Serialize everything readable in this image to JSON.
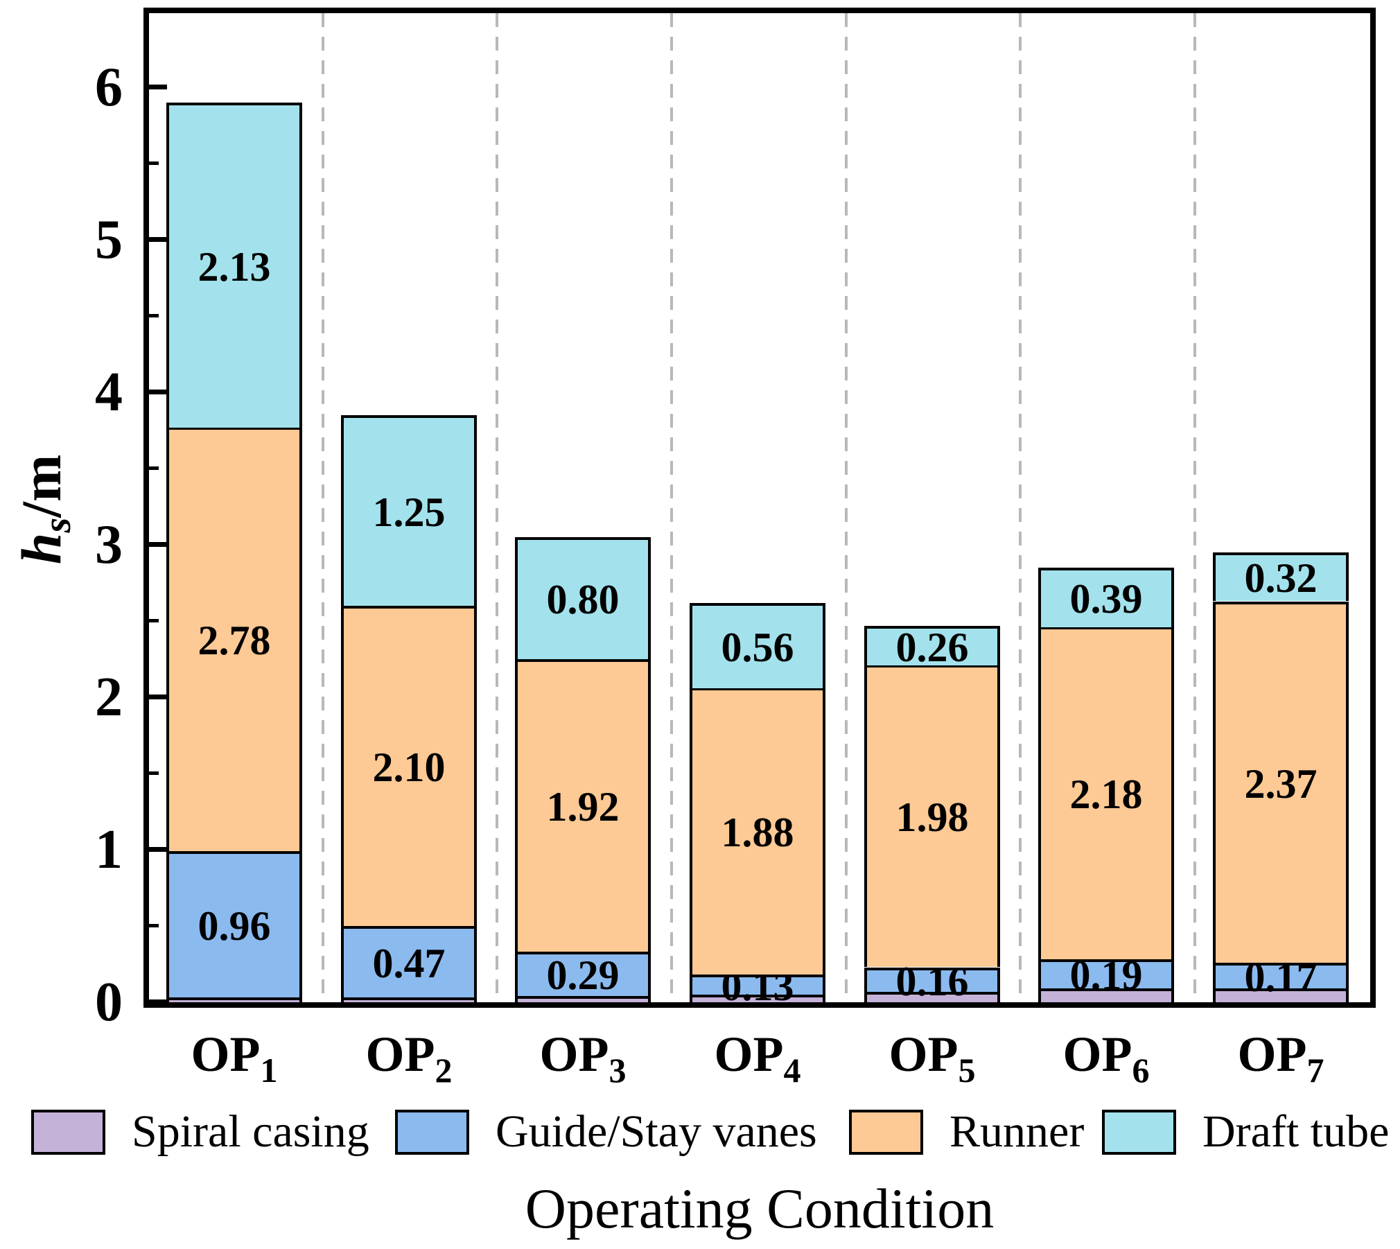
{
  "chart_data": {
    "type": "bar",
    "stacked": true,
    "title": "",
    "xlabel": "Operating Condition",
    "ylabel": "h_s/m",
    "ylabel_parts": {
      "symbol": "h",
      "subscript": "s",
      "unit": "/m"
    },
    "ylim": [
      0,
      6.5
    ],
    "ytick_labels": [
      "0",
      "1",
      "2",
      "3",
      "4",
      "5",
      "6"
    ],
    "ytick_minor": [
      0.5,
      1.5,
      2.5,
      3.5,
      4.5,
      5.5
    ],
    "grid": "vertical dashed separators between categories",
    "legend_position": "bottom",
    "categories": [
      {
        "base": "OP",
        "sub": "1"
      },
      {
        "base": "OP",
        "sub": "2"
      },
      {
        "base": "OP",
        "sub": "3"
      },
      {
        "base": "OP",
        "sub": "4"
      },
      {
        "base": "OP",
        "sub": "5"
      },
      {
        "base": "OP",
        "sub": "6"
      },
      {
        "base": "OP",
        "sub": "7"
      }
    ],
    "series": [
      {
        "name": "Spiral casing",
        "color": "#c5b2d8",
        "values": [
          0.03,
          0.03,
          0.04,
          0.05,
          0.07,
          0.09,
          0.09
        ],
        "labels": null
      },
      {
        "name": "Guide/Stay vanes",
        "color": "#8bbaef",
        "values": [
          0.96,
          0.47,
          0.29,
          0.13,
          0.16,
          0.19,
          0.17
        ],
        "labels": [
          "0.96",
          "0.47",
          "0.29",
          "0.13",
          "0.16",
          "0.19",
          "0.17"
        ]
      },
      {
        "name": "Runner",
        "color": "#fdc994",
        "values": [
          2.78,
          2.1,
          1.92,
          1.88,
          1.98,
          2.18,
          2.37
        ],
        "labels": [
          "2.78",
          "2.10",
          "1.92",
          "1.88",
          "1.98",
          "2.18",
          "2.37"
        ]
      },
      {
        "name": "Draft tube",
        "color": "#a3e2ec",
        "values": [
          2.13,
          1.25,
          0.8,
          0.56,
          0.26,
          0.39,
          0.32
        ],
        "labels": [
          "2.13",
          "1.25",
          "0.80",
          "0.56",
          "0.26",
          "0.39",
          "0.32"
        ]
      }
    ]
  }
}
